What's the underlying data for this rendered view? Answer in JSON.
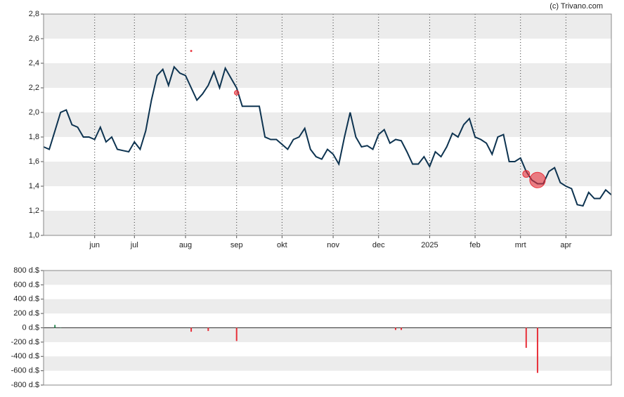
{
  "chart_data": [
    {
      "type": "line",
      "source": "(c) Trivano.com",
      "categories": [
        null,
        null,
        null,
        null,
        null,
        null,
        null,
        null,
        null,
        "jun",
        null,
        null,
        null,
        null,
        null,
        null,
        "jul",
        null,
        null,
        null,
        null,
        null,
        null,
        null,
        null,
        "aug",
        null,
        null,
        null,
        null,
        null,
        null,
        null,
        null,
        "sep",
        null,
        null,
        null,
        null,
        null,
        null,
        null,
        "okt",
        null,
        null,
        null,
        null,
        null,
        null,
        null,
        null,
        "nov",
        null,
        null,
        null,
        null,
        null,
        null,
        null,
        "dec",
        null,
        null,
        null,
        null,
        null,
        null,
        null,
        null,
        "2025",
        null,
        null,
        null,
        null,
        null,
        null,
        null,
        "feb",
        null,
        null,
        null,
        null,
        null,
        null,
        null,
        "mrt",
        null,
        null,
        null,
        null,
        null,
        null,
        null,
        "apr",
        null,
        null,
        null,
        null,
        null,
        null,
        null,
        null
      ],
      "values": [
        1.72,
        1.7,
        1.85,
        2.0,
        2.02,
        1.9,
        1.88,
        1.8,
        1.8,
        1.78,
        1.88,
        1.76,
        1.8,
        1.7,
        1.69,
        1.68,
        1.76,
        1.7,
        1.85,
        2.1,
        2.3,
        2.35,
        2.22,
        2.37,
        2.32,
        2.3,
        2.2,
        2.1,
        2.15,
        2.22,
        2.33,
        2.2,
        2.36,
        2.28,
        2.2,
        2.05,
        2.05,
        2.05,
        2.05,
        1.8,
        1.78,
        1.78,
        1.74,
        1.7,
        1.78,
        1.8,
        1.87,
        1.7,
        1.64,
        1.62,
        1.7,
        1.66,
        1.58,
        1.8,
        2.0,
        1.8,
        1.72,
        1.73,
        1.7,
        1.82,
        1.86,
        1.75,
        1.78,
        1.77,
        1.68,
        1.58,
        1.58,
        1.64,
        1.56,
        1.68,
        1.64,
        1.72,
        1.83,
        1.8,
        1.9,
        1.95,
        1.8,
        1.78,
        1.75,
        1.66,
        1.8,
        1.82,
        1.6,
        1.6,
        1.63,
        1.52,
        1.45,
        1.42,
        1.42,
        1.52,
        1.55,
        1.43,
        1.4,
        1.38,
        1.25,
        1.24,
        1.35,
        1.3,
        1.3,
        1.37,
        1.33
      ],
      "color": "#0d3350",
      "ylim": [
        1.0,
        2.8
      ],
      "yticks": [
        {
          "value": 2.8,
          "label": "2,8"
        },
        {
          "value": 2.6,
          "label": "2,6"
        },
        {
          "value": 2.4,
          "label": "2,4"
        },
        {
          "value": 2.2,
          "label": "2,2"
        },
        {
          "value": 2.0,
          "label": "2,0"
        },
        {
          "value": 1.8,
          "label": "1,8"
        },
        {
          "value": 1.6,
          "label": "1,6"
        },
        {
          "value": 1.4,
          "label": "1,4"
        },
        {
          "value": 1.2,
          "label": "1,2"
        },
        {
          "value": 1.0,
          "label": "1,0"
        }
      ],
      "markers": {
        "color": "#e8303a",
        "points": [
          {
            "index": 26,
            "y": 2.5,
            "size": 55
          },
          {
            "index": 34,
            "y": 2.16,
            "size": 185
          },
          {
            "index": 85,
            "y": 1.5,
            "size": 280
          },
          {
            "index": 87,
            "y": 1.45,
            "size": 630
          }
        ]
      }
    },
    {
      "type": "bar",
      "values": [
        null,
        null,
        40,
        5,
        null,
        null,
        null,
        null,
        null,
        null,
        null,
        null,
        null,
        null,
        null,
        null,
        null,
        null,
        null,
        null,
        null,
        null,
        null,
        null,
        null,
        null,
        -55,
        null,
        null,
        -45,
        null,
        null,
        null,
        null,
        -185,
        null,
        null,
        null,
        null,
        null,
        null,
        null,
        null,
        null,
        null,
        null,
        null,
        null,
        null,
        null,
        null,
        null,
        null,
        null,
        null,
        null,
        null,
        null,
        null,
        null,
        null,
        null,
        -30,
        -30,
        null,
        null,
        null,
        null,
        null,
        null,
        null,
        null,
        null,
        null,
        null,
        null,
        null,
        null,
        null,
        null,
        null,
        null,
        null,
        null,
        null,
        -280,
        null,
        -630,
        null,
        null,
        null,
        null,
        null,
        null,
        null,
        null,
        null,
        null,
        null,
        null,
        null
      ],
      "positive_color": "#2e8b57",
      "negative_color": "#e8303a",
      "ylim": [
        -800,
        800
      ],
      "yticks": [
        {
          "value": 800,
          "label": "800 d.$"
        },
        {
          "value": 600,
          "label": "600 d.$"
        },
        {
          "value": 400,
          "label": "400 d.$"
        },
        {
          "value": 200,
          "label": "200 d.$"
        },
        {
          "value": 0,
          "label": "0 d.$"
        },
        {
          "value": -200,
          "label": "-200 d.$"
        },
        {
          "value": -400,
          "label": "-400 d.$"
        },
        {
          "value": -600,
          "label": "-600 d.$"
        },
        {
          "value": -800,
          "label": "-800 d.$"
        }
      ]
    }
  ]
}
